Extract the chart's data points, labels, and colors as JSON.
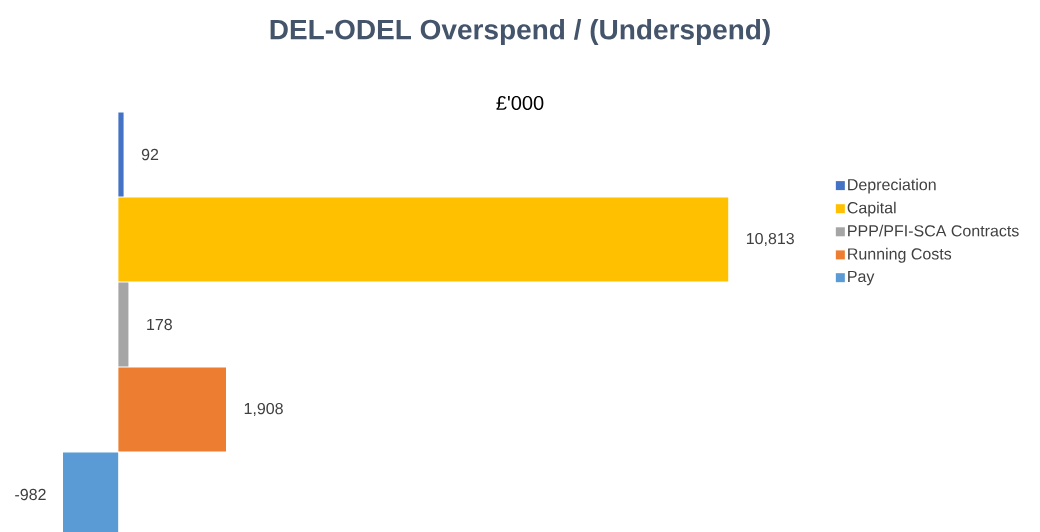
{
  "chart_data": {
    "type": "bar",
    "orientation": "horizontal",
    "title": "DEL-ODEL Overspend / (Underspend)",
    "subtitle": "£'000",
    "categories": [
      null
    ],
    "series": [
      {
        "name": "Depreciation",
        "color": "#4472c4",
        "values": [
          92
        ],
        "value_labels": [
          "92"
        ]
      },
      {
        "name": "Capital",
        "color": "#ffc000",
        "values": [
          10813
        ],
        "value_labels": [
          "10,813"
        ]
      },
      {
        "name": "PPP/PFI-SCA Contracts",
        "color": "#a5a5a5",
        "values": [
          178
        ],
        "value_labels": [
          "178"
        ]
      },
      {
        "name": "Running Costs",
        "color": "#ed7d31",
        "values": [
          1908
        ],
        "value_labels": [
          "1,908"
        ]
      },
      {
        "name": "Pay",
        "color": "#5b9bd5",
        "values": [
          -982
        ],
        "value_labels": [
          "-982"
        ]
      }
    ],
    "legend": "right"
  }
}
